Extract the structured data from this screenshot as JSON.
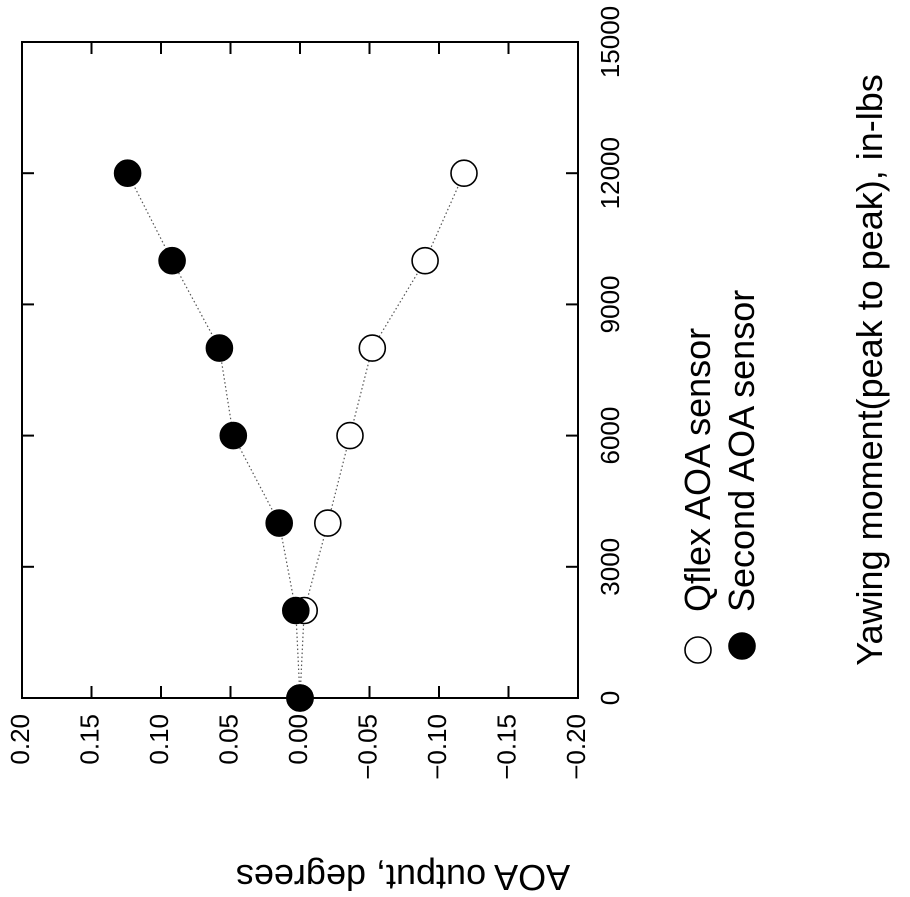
{
  "chart_data": {
    "type": "scatter",
    "xlabel": "Yawing moment(peak to peak), in-lbs",
    "ylabel": "AOA output, degrees",
    "xlim": [
      0,
      15000
    ],
    "ylim": [
      -0.2,
      0.2
    ],
    "x_ticks": [
      0,
      3000,
      6000,
      9000,
      12000,
      15000
    ],
    "y_ticks": [
      0.2,
      0.15,
      0.1,
      0.05,
      0.0,
      -0.05,
      -0.1,
      -0.15,
      -0.2
    ],
    "x_tick_labels": [
      "0",
      "3000",
      "6000",
      "9000",
      "12000",
      "15000"
    ],
    "y_tick_labels": [
      "0.20",
      "0.15",
      "0.10",
      "0.05",
      "0.00",
      "−0.05",
      "−0.10",
      "−0.15",
      "−0.20"
    ],
    "orientation": "rotated 90 degrees clockwise",
    "grid": false,
    "legend_position": "lower-left",
    "series": [
      {
        "name": "Qflex AOA sensor",
        "marker": "open-circle",
        "line": "dotted",
        "points": [
          [
            0,
            0.0
          ],
          [
            2000,
            -0.003
          ],
          [
            4000,
            -0.02
          ],
          [
            6000,
            -0.036
          ],
          [
            8000,
            -0.052
          ],
          [
            10000,
            -0.09
          ],
          [
            12000,
            -0.118
          ]
        ]
      },
      {
        "name": "Second AOA sensor",
        "marker": "filled-circle",
        "line": "dotted",
        "points": [
          [
            0,
            0.0
          ],
          [
            2000,
            0.003
          ],
          [
            4000,
            0.015
          ],
          [
            6000,
            0.048
          ],
          [
            8000,
            0.058
          ],
          [
            10000,
            0.092
          ],
          [
            12000,
            0.124
          ]
        ]
      }
    ]
  }
}
